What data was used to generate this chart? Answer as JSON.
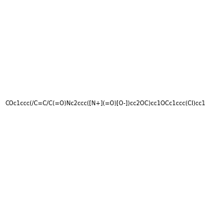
{
  "smiles": "COc1ccc(/C=C/C(=O)Nc2ccc([N+](=O)[O-])cc2OC)cc1OCc1ccc(Cl)cc1",
  "title": "",
  "bg_color": "#e8e8e8",
  "fig_width": 3.0,
  "fig_height": 3.0,
  "dpi": 100
}
